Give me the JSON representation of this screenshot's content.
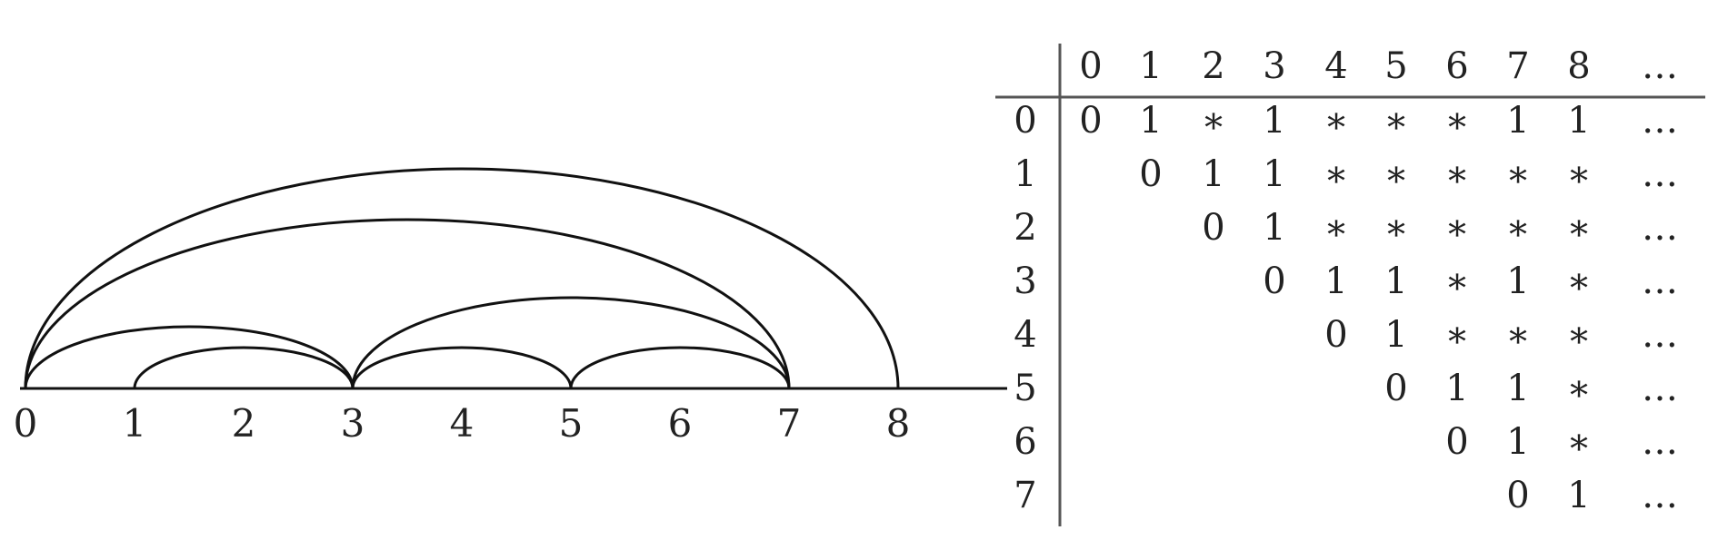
{
  "arc_diagram": {
    "points": [
      "0",
      "1",
      "2",
      "3",
      "4",
      "5",
      "6",
      "7",
      "8"
    ],
    "arcs": [
      [
        0,
        3
      ],
      [
        0,
        7
      ],
      [
        0,
        8
      ],
      [
        1,
        3
      ],
      [
        3,
        5
      ],
      [
        3,
        7
      ],
      [
        5,
        7
      ]
    ]
  },
  "table": {
    "columns": [
      "0",
      "1",
      "2",
      "3",
      "4",
      "5",
      "6",
      "7",
      "8",
      "…"
    ],
    "rows": [
      {
        "label": "0",
        "cells": [
          "0",
          "1",
          "∗",
          "1",
          "∗",
          "∗",
          "∗",
          "1",
          "1",
          "…"
        ]
      },
      {
        "label": "1",
        "cells": [
          "",
          "0",
          "1",
          "1",
          "∗",
          "∗",
          "∗",
          "∗",
          "∗",
          "…"
        ]
      },
      {
        "label": "2",
        "cells": [
          "",
          "",
          "0",
          "1",
          "∗",
          "∗",
          "∗",
          "∗",
          "∗",
          "…"
        ]
      },
      {
        "label": "3",
        "cells": [
          "",
          "",
          "",
          "0",
          "1",
          "1",
          "∗",
          "1",
          "∗",
          "…"
        ]
      },
      {
        "label": "4",
        "cells": [
          "",
          "",
          "",
          "",
          "0",
          "1",
          "∗",
          "∗",
          "∗",
          "…"
        ]
      },
      {
        "label": "5",
        "cells": [
          "",
          "",
          "",
          "",
          "",
          "0",
          "1",
          "1",
          "∗",
          "…"
        ]
      },
      {
        "label": "6",
        "cells": [
          "",
          "",
          "",
          "",
          "",
          "",
          "0",
          "1",
          "∗",
          "…"
        ]
      },
      {
        "label": "7",
        "cells": [
          "",
          "",
          "",
          "",
          "",
          "",
          "",
          "0",
          "1",
          "…"
        ]
      }
    ]
  }
}
